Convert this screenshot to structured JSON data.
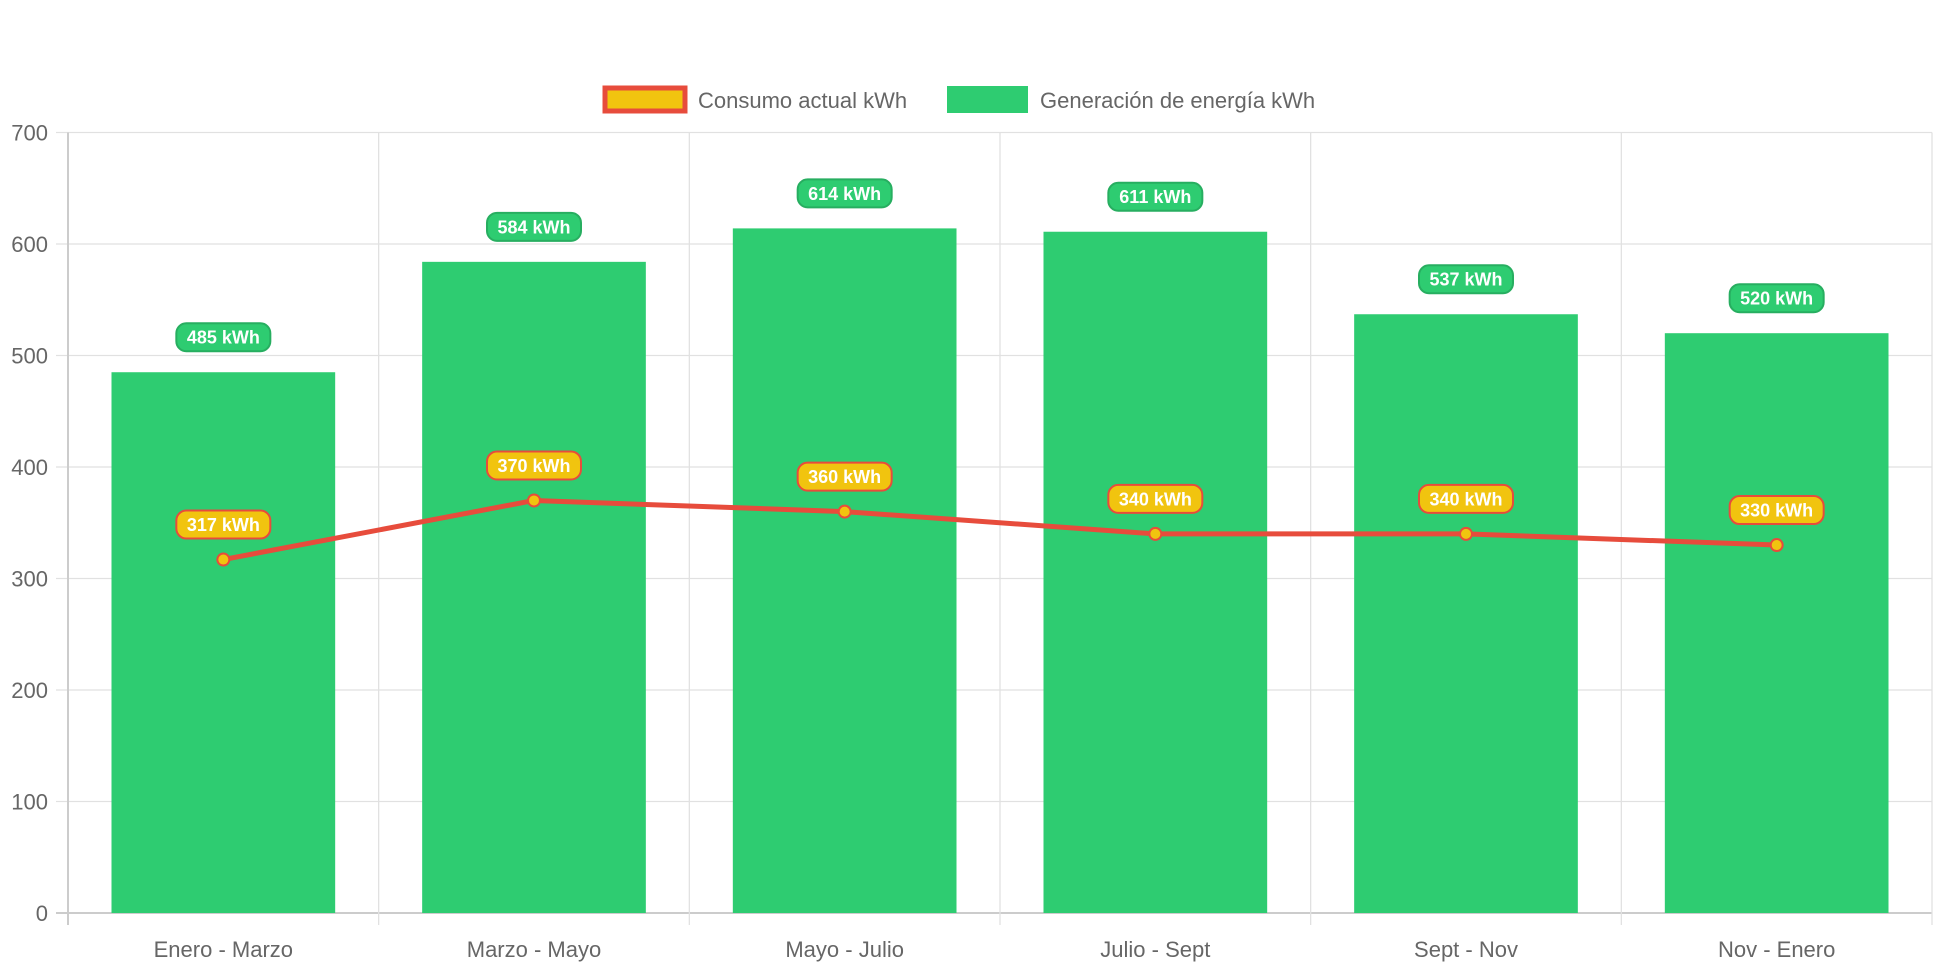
{
  "chart_data": {
    "type": "bar",
    "categories": [
      "Enero - Marzo",
      "Marzo - Mayo",
      "Mayo - Julio",
      "Julio - Sept",
      "Sept - Nov",
      "Nov - Enero"
    ],
    "series": [
      {
        "name": "Consumo actual kWh",
        "type": "line",
        "values": [
          317,
          370,
          360,
          340,
          340,
          330
        ],
        "labels": [
          "317 kWh",
          "370 kWh",
          "360 kWh",
          "340 kWh",
          "340 kWh",
          "330 kWh"
        ],
        "color": "#e74c3c",
        "fill": "#f1c40f"
      },
      {
        "name": "Generación de energía kWh",
        "type": "bar",
        "values": [
          485,
          584,
          614,
          611,
          537,
          520
        ],
        "labels": [
          "485 kWh",
          "584 kWh",
          "614 kWh",
          "611 kWh",
          "537 kWh",
          "520 kWh"
        ],
        "color": "#2ecc71"
      }
    ],
    "ylim": [
      0,
      700
    ],
    "yticks": [
      "0",
      "100",
      "200",
      "300",
      "400",
      "500",
      "600",
      "700"
    ],
    "grid": true,
    "legend": "top"
  }
}
